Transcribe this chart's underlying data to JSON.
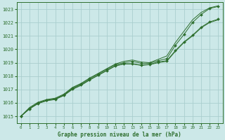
{
  "title": "Graphe pression niveau de la mer (hPa)",
  "bg_color": "#cce8e8",
  "grid_color": "#aacece",
  "line_color": "#2d6e2d",
  "xlim": [
    -0.5,
    23.5
  ],
  "ylim": [
    1014.5,
    1023.5
  ],
  "xticks": [
    0,
    1,
    2,
    3,
    4,
    5,
    6,
    7,
    8,
    9,
    10,
    11,
    12,
    13,
    14,
    15,
    16,
    17,
    18,
    19,
    20,
    21,
    22,
    23
  ],
  "yticks": [
    1015,
    1016,
    1017,
    1018,
    1019,
    1020,
    1021,
    1022,
    1023
  ],
  "series": [
    {
      "x": [
        0,
        1,
        2,
        3,
        4,
        5,
        6,
        7,
        8,
        9,
        10,
        11,
        12,
        13,
        14,
        15,
        16,
        17,
        18,
        19,
        20,
        21,
        22,
        23
      ],
      "y": [
        1015.0,
        1015.6,
        1016.0,
        1016.2,
        1016.3,
        1016.6,
        1017.1,
        1017.4,
        1017.8,
        1018.15,
        1018.5,
        1018.85,
        1019.0,
        1019.1,
        1018.95,
        1018.95,
        1019.15,
        1019.3,
        1020.3,
        1021.1,
        1022.0,
        1022.6,
        1023.05,
        1023.2
      ],
      "marker": "D",
      "markersize": 2.0
    },
    {
      "x": [
        0,
        1,
        2,
        3,
        4,
        5,
        6,
        7,
        8,
        9,
        10,
        11,
        12,
        13,
        14,
        15,
        16,
        17,
        18,
        19,
        20,
        21,
        22,
        23
      ],
      "y": [
        1015.0,
        1015.65,
        1016.05,
        1016.25,
        1016.35,
        1016.65,
        1017.15,
        1017.45,
        1017.85,
        1018.2,
        1018.55,
        1018.9,
        1019.1,
        1019.2,
        1019.05,
        1019.0,
        1019.25,
        1019.5,
        1020.5,
        1021.35,
        1022.2,
        1022.75,
        1023.1,
        1023.25
      ],
      "marker": null,
      "markersize": 0
    },
    {
      "x": [
        0,
        1,
        2,
        3,
        4,
        5,
        6,
        7,
        8,
        9,
        10,
        11,
        12,
        13,
        14,
        15,
        16,
        17,
        18,
        19,
        20,
        21,
        22,
        23
      ],
      "y": [
        1015.0,
        1015.55,
        1015.95,
        1016.15,
        1016.25,
        1016.55,
        1017.0,
        1017.3,
        1017.7,
        1018.05,
        1018.4,
        1018.75,
        1018.9,
        1018.9,
        1018.8,
        1018.85,
        1019.0,
        1019.1,
        1019.85,
        1020.5,
        1021.0,
        1021.6,
        1022.0,
        1022.2
      ],
      "marker": null,
      "markersize": 0
    },
    {
      "x": [
        0,
        1,
        2,
        3,
        4,
        5,
        6,
        7,
        8,
        9,
        10,
        11,
        12,
        13,
        14,
        15,
        16,
        17,
        18,
        19,
        20,
        21,
        22,
        23
      ],
      "y": [
        1015.0,
        1015.55,
        1015.95,
        1016.2,
        1016.28,
        1016.55,
        1017.05,
        1017.35,
        1017.72,
        1018.08,
        1018.42,
        1018.77,
        1018.92,
        1018.92,
        1018.82,
        1018.87,
        1019.05,
        1019.15,
        1019.9,
        1020.55,
        1021.05,
        1021.65,
        1022.05,
        1022.25
      ],
      "marker": "D",
      "markersize": 2.0
    }
  ]
}
